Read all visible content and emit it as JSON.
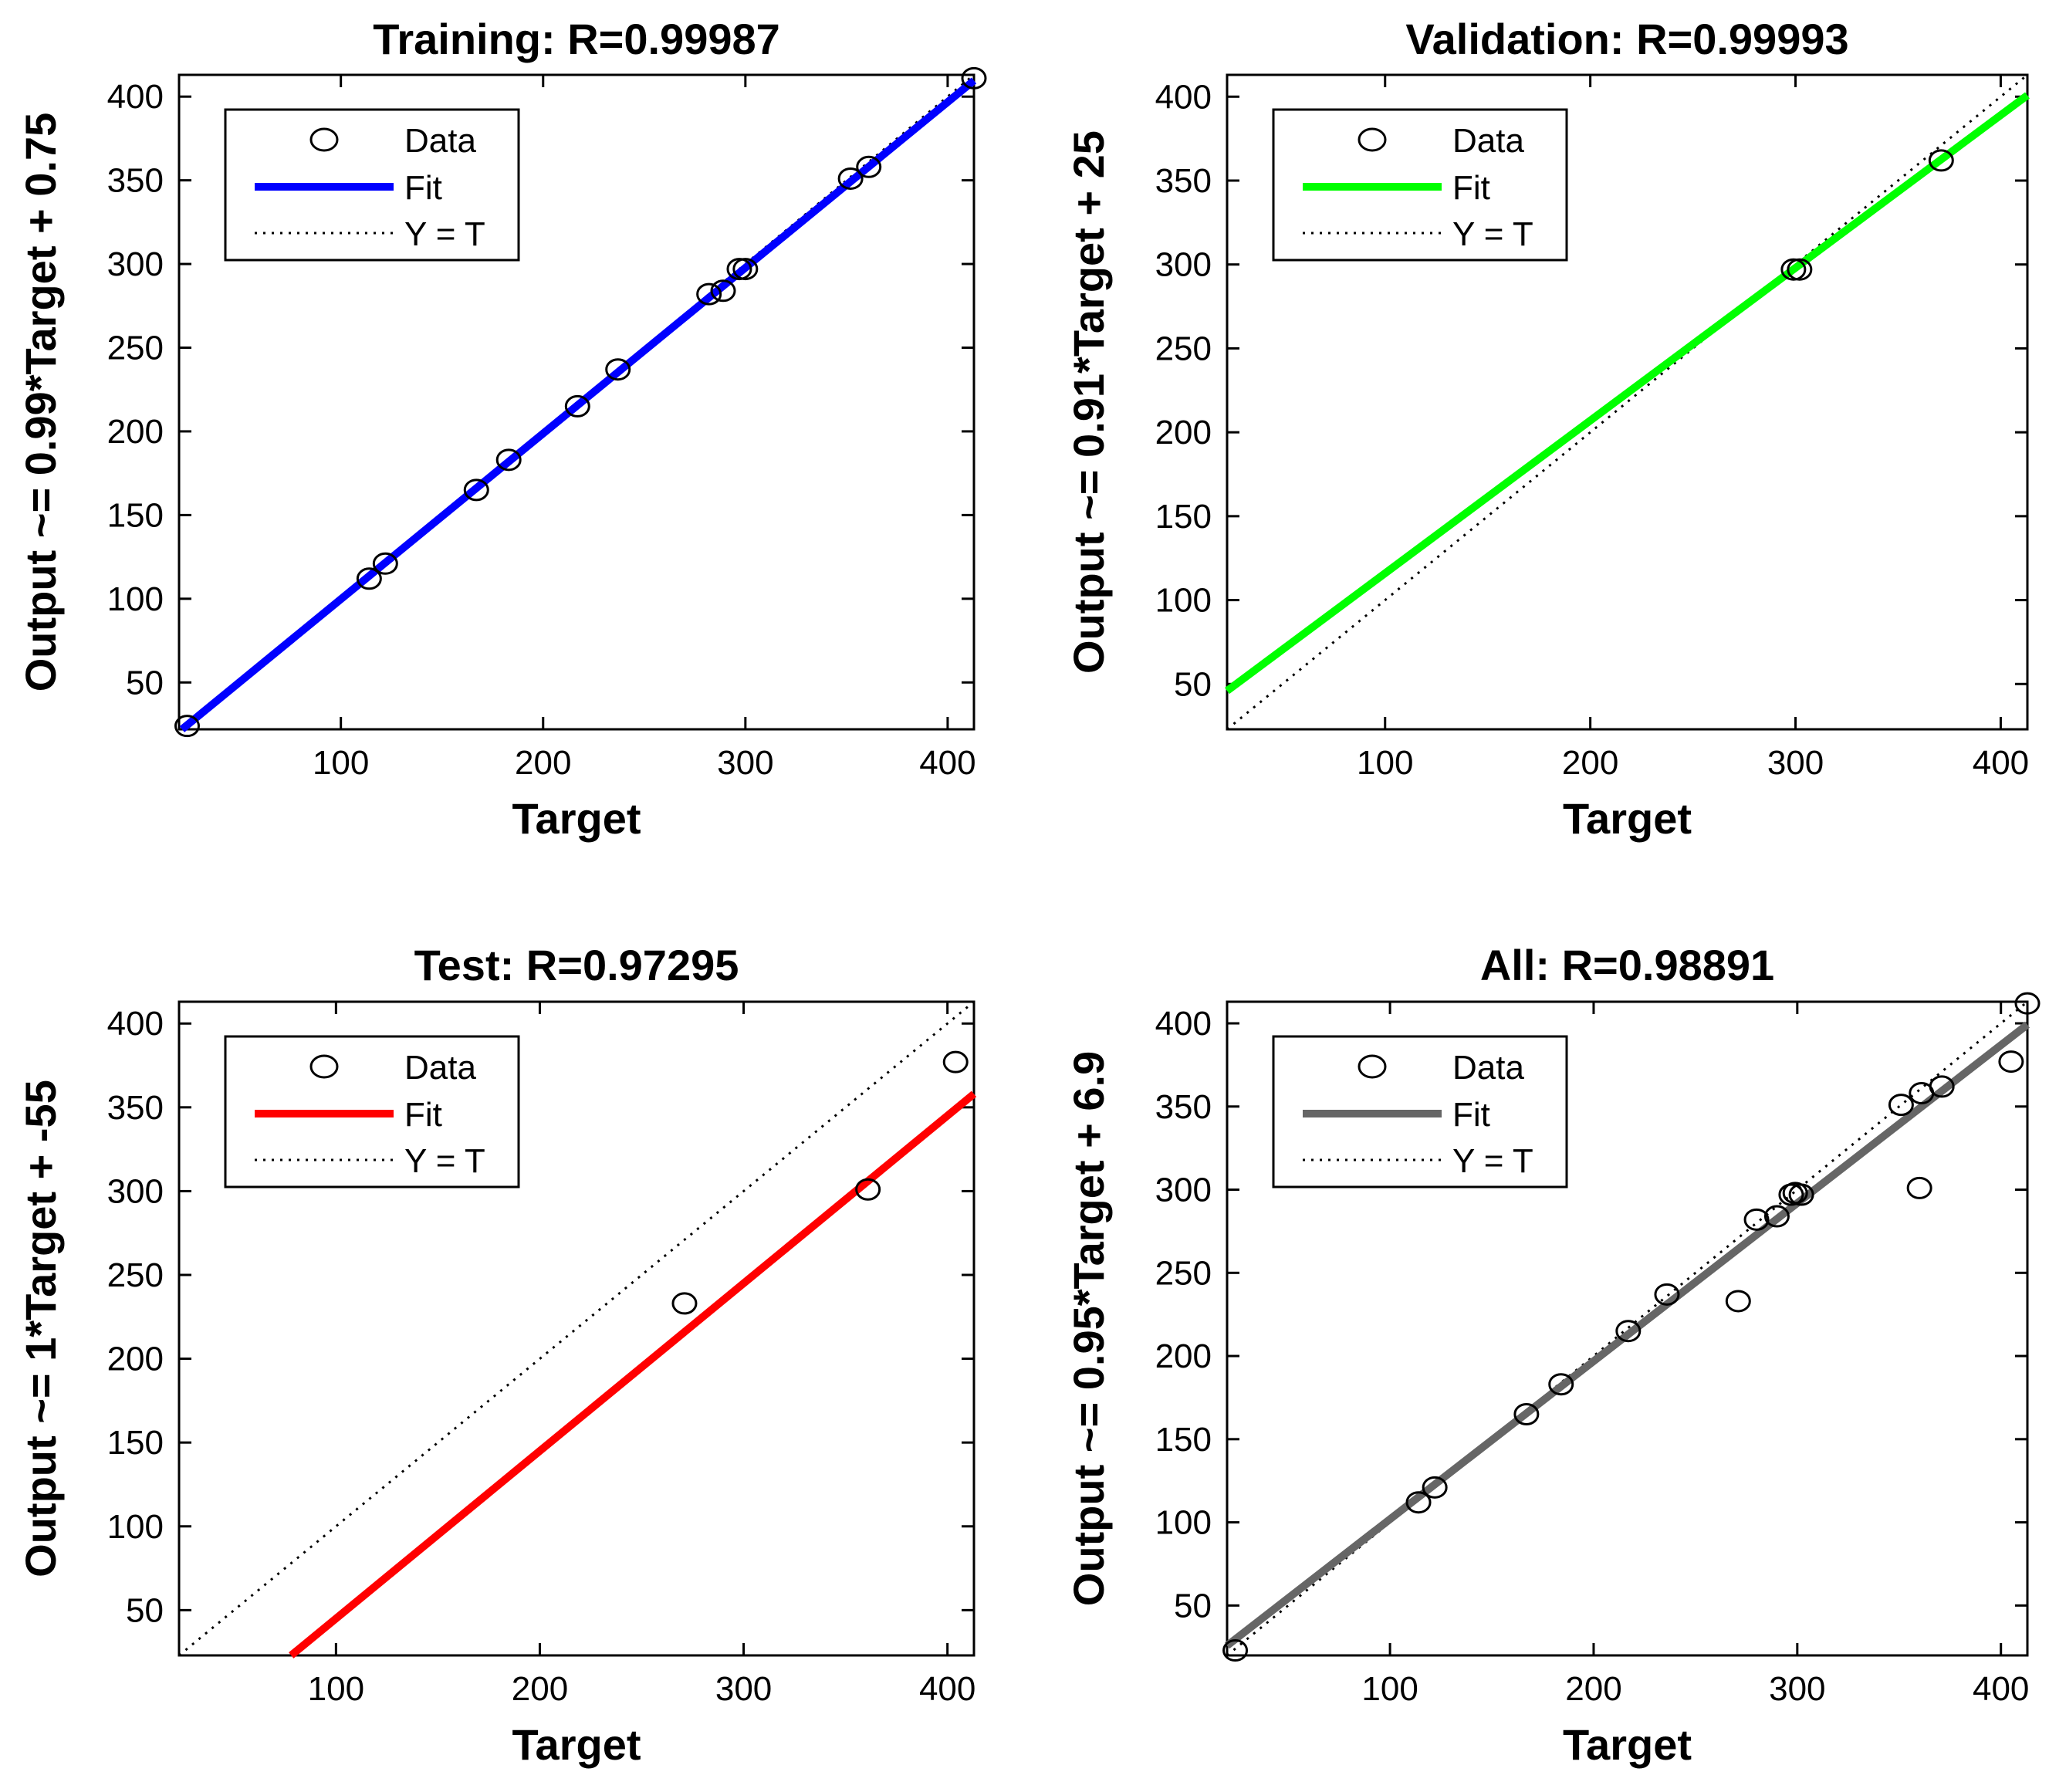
{
  "chart_data": [
    {
      "type": "scatter",
      "title": "Training: R=0.99987",
      "xlabel": "Target",
      "ylabel": "Output ~= 0.99*Target + 0.75",
      "xlim": [
        20,
        413
      ],
      "ylim": [
        22,
        413
      ],
      "xticks": [
        100,
        200,
        300,
        400
      ],
      "yticks": [
        50,
        100,
        150,
        200,
        250,
        300,
        350,
        400
      ],
      "fit_color": "#0000ff",
      "fit": {
        "slope": 0.99,
        "intercept": 0.75
      },
      "legend": {
        "position": "top-left",
        "entries": [
          "Data",
          "Fit",
          "Y = T"
        ]
      },
      "points": [
        {
          "x": 24,
          "y": 24
        },
        {
          "x": 114,
          "y": 112
        },
        {
          "x": 122,
          "y": 121
        },
        {
          "x": 167,
          "y": 165
        },
        {
          "x": 183,
          "y": 183
        },
        {
          "x": 217,
          "y": 215
        },
        {
          "x": 237,
          "y": 237
        },
        {
          "x": 282,
          "y": 282
        },
        {
          "x": 289,
          "y": 284
        },
        {
          "x": 297,
          "y": 297
        },
        {
          "x": 300,
          "y": 297
        },
        {
          "x": 352,
          "y": 351
        },
        {
          "x": 361,
          "y": 358
        },
        {
          "x": 413,
          "y": 411
        }
      ]
    },
    {
      "type": "scatter",
      "title": "Validation: R=0.99993",
      "xlabel": "Target",
      "ylabel": "Output ~= 0.91*Target + 25",
      "xlim": [
        23,
        413
      ],
      "ylim": [
        23,
        413
      ],
      "xticks": [
        100,
        200,
        300,
        400
      ],
      "yticks": [
        50,
        100,
        150,
        200,
        250,
        300,
        350,
        400
      ],
      "fit_color": "#00ff00",
      "fit": {
        "slope": 0.91,
        "intercept": 25
      },
      "legend": {
        "position": "top-left",
        "entries": [
          "Data",
          "Fit",
          "Y = T"
        ]
      },
      "points": [
        {
          "x": 299,
          "y": 297
        },
        {
          "x": 302,
          "y": 297
        },
        {
          "x": 371,
          "y": 362
        }
      ]
    },
    {
      "type": "scatter",
      "title": "Test: R=0.97295",
      "xlabel": "Target",
      "ylabel": "Output ~= 1*Target + -55",
      "xlim": [
        23,
        413
      ],
      "ylim": [
        23,
        413
      ],
      "xticks": [
        100,
        200,
        300,
        400
      ],
      "yticks": [
        50,
        100,
        150,
        200,
        250,
        300,
        350,
        400
      ],
      "fit_color": "#ff0000",
      "fit": {
        "slope": 1.0,
        "intercept": -55
      },
      "legend": {
        "position": "top-left",
        "entries": [
          "Data",
          "Fit",
          "Y = T"
        ]
      },
      "points": [
        {
          "x": 271,
          "y": 233
        },
        {
          "x": 361,
          "y": 301
        },
        {
          "x": 404,
          "y": 377
        }
      ]
    },
    {
      "type": "scatter",
      "title": "All: R=0.98891",
      "xlabel": "Target",
      "ylabel": "Output ~= 0.95*Target + 6.9",
      "xlim": [
        20,
        413
      ],
      "ylim": [
        20,
        413
      ],
      "xticks": [
        100,
        200,
        300,
        400
      ],
      "yticks": [
        50,
        100,
        150,
        200,
        250,
        300,
        350,
        400
      ],
      "fit_color": "#666666",
      "fit": {
        "slope": 0.95,
        "intercept": 6.9
      },
      "legend": {
        "position": "top-left",
        "entries": [
          "Data",
          "Fit",
          "Y = T"
        ]
      },
      "points": [
        {
          "x": 24,
          "y": 23
        },
        {
          "x": 114,
          "y": 112
        },
        {
          "x": 122,
          "y": 121
        },
        {
          "x": 167,
          "y": 165
        },
        {
          "x": 184,
          "y": 183
        },
        {
          "x": 217,
          "y": 215
        },
        {
          "x": 236,
          "y": 237
        },
        {
          "x": 271,
          "y": 233
        },
        {
          "x": 280,
          "y": 282
        },
        {
          "x": 290,
          "y": 284
        },
        {
          "x": 297,
          "y": 297
        },
        {
          "x": 299,
          "y": 298
        },
        {
          "x": 302,
          "y": 297
        },
        {
          "x": 351,
          "y": 351
        },
        {
          "x": 360,
          "y": 301
        },
        {
          "x": 361,
          "y": 358
        },
        {
          "x": 371,
          "y": 362
        },
        {
          "x": 405,
          "y": 377
        },
        {
          "x": 413,
          "y": 412
        }
      ]
    }
  ]
}
